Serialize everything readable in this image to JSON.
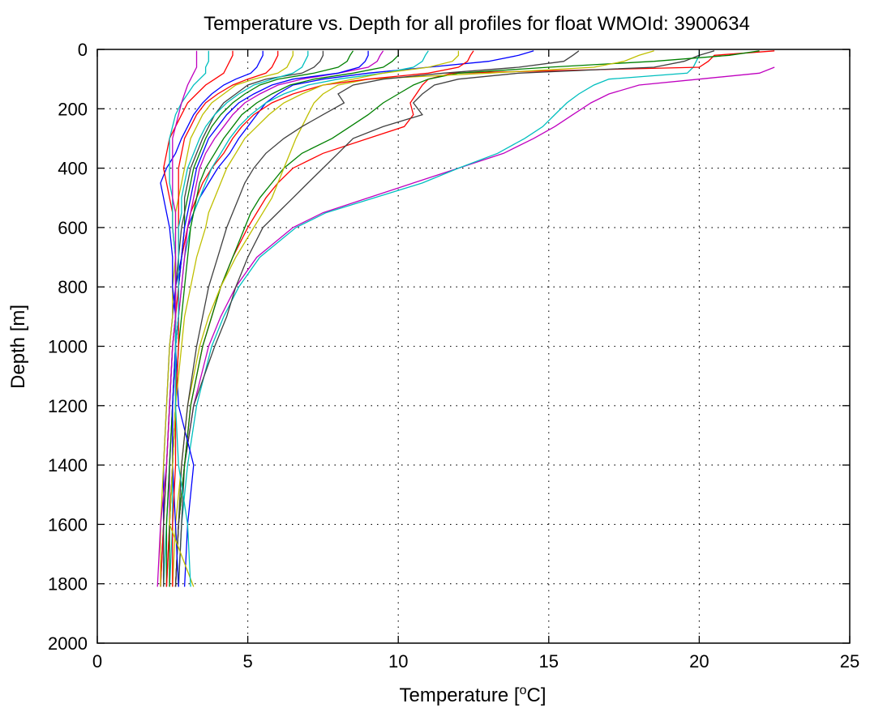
{
  "chart_data": {
    "type": "line",
    "title": "Temperature vs. Depth for all profiles for float WMOId: 3900634",
    "xlabel": "Temperature [",
    "xlabel_superscript": "o",
    "xlabel_unit": "C]",
    "ylabel": "Depth [m]",
    "xlim": [
      0,
      25
    ],
    "ylim": [
      0,
      2000
    ],
    "y_reversed": true,
    "grid": true,
    "legend": "none",
    "xticks": [
      0,
      5,
      10,
      15,
      20,
      25
    ],
    "yticks": [
      0,
      200,
      400,
      600,
      800,
      1000,
      1200,
      1400,
      1600,
      1800,
      2000
    ],
    "xtick_labels": [
      "0",
      "5",
      "10",
      "15",
      "20",
      "25"
    ],
    "ytick_labels": [
      "0",
      "200",
      "400",
      "600",
      "800",
      "1000",
      "1200",
      "1400",
      "1600",
      "1800",
      "2000"
    ],
    "colors": [
      "#0000ff",
      "#008000",
      "#ff0000",
      "#00bfbf",
      "#bf00bf",
      "#bfbf00",
      "#404040"
    ],
    "profile_depths": [
      5,
      20,
      40,
      60,
      80,
      100,
      120,
      150,
      180,
      220,
      260,
      300,
      350,
      400,
      450,
      500,
      550,
      600,
      700,
      800,
      900,
      1000,
      1200,
      1400,
      1600,
      1810
    ],
    "series": [
      {
        "color": "#bf00bf",
        "values": [
          null,
          null,
          null,
          22.5,
          22.0,
          20.0,
          18.0,
          17.0,
          16.4,
          15.8,
          15.2,
          14.5,
          13.5,
          12.0,
          10.5,
          9.0,
          7.5,
          6.5,
          5.3,
          4.6,
          4.1,
          3.7,
          3.2,
          2.9,
          2.7,
          2.6
        ]
      },
      {
        "color": "#00bfbf",
        "values": [
          20.0,
          20.0,
          19.9,
          19.8,
          19.6,
          17.0,
          16.5,
          16.0,
          15.6,
          15.2,
          14.8,
          14.2,
          13.3,
          12.0,
          10.8,
          9.2,
          7.6,
          6.6,
          5.4,
          4.7,
          4.2,
          3.8,
          3.3,
          3.0,
          2.8,
          2.7
        ]
      },
      {
        "color": "#ff0000",
        "values": [
          22.5,
          20.5,
          20.3,
          20.0,
          11.8,
          11.0,
          10.8,
          10.6,
          10.4,
          10.5,
          10.2,
          9.0,
          7.5,
          6.5,
          6.0,
          5.6,
          5.3,
          5.0,
          4.5,
          4.1,
          3.8,
          3.5,
          3.1,
          2.9,
          2.7,
          2.6
        ]
      },
      {
        "color": "#404040",
        "values": [
          20.5,
          20.0,
          19.5,
          18.5,
          14.0,
          12.0,
          11.2,
          10.8,
          10.5,
          10.8,
          9.5,
          8.5,
          8.0,
          7.5,
          7.0,
          6.5,
          6.0,
          5.5,
          5.0,
          4.6,
          4.3,
          3.9,
          3.2,
          2.9,
          2.8,
          2.7
        ]
      },
      {
        "color": "#008000",
        "values": [
          22.0,
          21.0,
          18.5,
          15.0,
          12.0,
          11.0,
          10.5,
          10.0,
          9.5,
          9.0,
          8.4,
          7.8,
          6.8,
          6.2,
          5.8,
          5.4,
          5.1,
          4.9,
          4.5,
          4.1,
          3.8,
          3.5,
          3.1,
          2.9,
          2.7,
          2.6
        ]
      },
      {
        "color": "#bfbf00",
        "values": [
          18.5,
          18.0,
          17.5,
          16.5,
          13.0,
          9.0,
          8.0,
          7.5,
          7.2,
          7.0,
          6.8,
          6.6,
          6.4,
          6.2,
          6.0,
          5.8,
          5.5,
          5.2,
          4.6,
          4.1,
          3.7,
          3.4,
          3.0,
          2.8,
          2.6,
          2.5
        ]
      },
      {
        "color": "#0000ff",
        "values": [
          14.5,
          14.0,
          13.0,
          11.0,
          9.0,
          7.5,
          6.5,
          6.0,
          5.6,
          5.3,
          5.0,
          4.7,
          4.4,
          4.0,
          3.7,
          3.4,
          3.2,
          3.0,
          2.8,
          2.6,
          2.5,
          2.4,
          2.3,
          2.2,
          2.2,
          2.1
        ]
      },
      {
        "color": "#ff0000",
        "values": [
          12.5,
          12.4,
          12.3,
          12.0,
          11.0,
          9.0,
          7.5,
          6.5,
          5.8,
          5.2,
          4.8,
          4.5,
          4.2,
          3.8,
          3.5,
          3.3,
          3.1,
          3.0,
          2.8,
          2.7,
          2.6,
          2.5,
          2.4,
          2.3,
          2.2,
          2.1
        ]
      },
      {
        "color": "#00bfbf",
        "values": [
          11.0,
          10.9,
          10.8,
          10.5,
          9.5,
          8.0,
          7.0,
          6.2,
          5.6,
          5.1,
          4.7,
          4.4,
          4.1,
          3.8,
          3.6,
          3.4,
          3.2,
          3.1,
          2.9,
          2.8,
          2.7,
          2.6,
          2.5,
          2.4,
          2.3,
          2.2
        ]
      },
      {
        "color": "#bf00bf",
        "values": [
          9.5,
          9.4,
          9.3,
          9.0,
          8.0,
          6.8,
          6.0,
          5.4,
          4.9,
          4.5,
          4.2,
          3.9,
          3.6,
          3.4,
          3.3,
          3.2,
          3.1,
          3.0,
          2.9,
          2.8,
          2.7,
          2.6,
          2.5,
          2.4,
          2.4,
          2.3
        ]
      },
      {
        "color": "#008000",
        "values": [
          8.5,
          8.4,
          8.3,
          8.0,
          7.2,
          6.0,
          5.4,
          4.9,
          4.5,
          4.1,
          3.8,
          3.6,
          3.4,
          3.2,
          3.1,
          3.0,
          2.9,
          2.9,
          2.8,
          2.7,
          2.7,
          2.6,
          2.5,
          2.4,
          2.3,
          2.3
        ]
      },
      {
        "color": "#404040",
        "values": [
          7.5,
          7.5,
          7.4,
          7.2,
          6.8,
          5.6,
          5.0,
          4.6,
          4.2,
          3.9,
          3.7,
          3.5,
          3.3,
          3.1,
          3.0,
          2.9,
          2.9,
          2.8,
          2.7,
          2.6,
          2.6,
          2.5,
          2.4,
          2.3,
          2.2,
          2.2
        ]
      },
      {
        "color": "#bfbf00",
        "values": [
          6.5,
          6.5,
          6.4,
          6.3,
          6.0,
          5.2,
          4.6,
          4.2,
          3.8,
          3.5,
          3.3,
          3.1,
          3.0,
          2.9,
          2.8,
          2.7,
          2.6,
          2.6,
          2.6,
          2.5,
          2.5,
          2.4,
          2.3,
          2.2,
          2.1,
          2.1
        ]
      },
      {
        "color": "#0000ff",
        "values": [
          5.5,
          5.5,
          5.4,
          5.3,
          5.1,
          4.6,
          4.2,
          3.8,
          3.5,
          3.2,
          3.0,
          2.8,
          2.6,
          2.3,
          2.1,
          2.2,
          2.3,
          2.4,
          2.5,
          2.5,
          2.6,
          2.6,
          2.7,
          3.2,
          3.0,
          2.9
        ]
      },
      {
        "color": "#ff0000",
        "values": [
          4.5,
          4.5,
          4.4,
          4.3,
          4.2,
          3.9,
          3.6,
          3.3,
          3.0,
          2.8,
          2.6,
          2.4,
          2.3,
          2.2,
          2.3,
          2.4,
          2.5,
          2.5,
          2.6,
          2.6,
          2.6,
          2.6,
          2.6,
          2.5,
          2.4,
          2.3
        ]
      },
      {
        "color": "#00bfbf",
        "values": [
          3.7,
          3.7,
          3.7,
          3.6,
          3.6,
          3.4,
          3.2,
          3.0,
          2.8,
          2.6,
          2.5,
          2.4,
          2.4,
          2.4,
          2.4,
          2.5,
          2.5,
          2.5,
          2.6,
          2.6,
          2.6,
          2.6,
          2.6,
          2.5,
          2.5,
          2.4
        ]
      },
      {
        "color": "#bf00bf",
        "values": [
          3.3,
          3.3,
          3.3,
          3.3,
          3.2,
          3.1,
          3.0,
          2.9,
          2.8,
          2.7,
          2.6,
          2.5,
          2.5,
          2.5,
          2.5,
          2.5,
          2.6,
          2.6,
          2.6,
          2.6,
          2.6,
          2.5,
          2.4,
          2.3,
          2.1,
          2.0
        ]
      },
      {
        "color": "#008000",
        "values": [
          10.0,
          10.0,
          9.8,
          9.5,
          8.5,
          7.2,
          6.4,
          5.8,
          5.3,
          4.8,
          4.5,
          4.2,
          3.9,
          3.6,
          3.4,
          3.3,
          3.2,
          3.1,
          3.0,
          2.9,
          2.8,
          2.7,
          2.6,
          2.5,
          2.4,
          2.4
        ]
      },
      {
        "color": "#404040",
        "values": [
          16.0,
          15.8,
          15.5,
          14.0,
          11.5,
          9.5,
          8.5,
          8.0,
          8.2,
          7.5,
          6.8,
          6.2,
          5.6,
          5.2,
          4.9,
          4.7,
          4.5,
          4.3,
          4.0,
          3.7,
          3.5,
          3.3,
          3.0,
          2.8,
          2.7,
          2.6
        ]
      },
      {
        "color": "#0000ff",
        "values": [
          9.0,
          9.0,
          8.9,
          8.7,
          8.0,
          6.5,
          5.8,
          5.2,
          4.7,
          4.3,
          4.0,
          3.7,
          3.5,
          3.3,
          3.2,
          3.1,
          3.0,
          2.9,
          2.8,
          2.7,
          2.7,
          2.6,
          2.5,
          2.5,
          2.6,
          2.7
        ]
      },
      {
        "color": "#ff0000",
        "values": [
          6.0,
          6.0,
          5.9,
          5.8,
          5.6,
          5.0,
          4.5,
          4.0,
          3.6,
          3.3,
          3.1,
          2.9,
          2.8,
          2.7,
          2.7,
          2.7,
          2.7,
          2.7,
          2.7,
          2.7,
          2.7,
          2.7,
          2.6,
          2.6,
          2.5,
          2.5
        ]
      },
      {
        "color": "#bfbf00",
        "values": [
          12.0,
          12.0,
          11.8,
          11.0,
          9.5,
          8.5,
          7.5,
          6.8,
          6.2,
          5.7,
          5.3,
          4.9,
          4.6,
          4.3,
          4.1,
          3.9,
          3.7,
          3.6,
          3.3,
          3.1,
          2.9,
          2.8,
          2.6,
          2.5,
          2.4,
          3.2
        ]
      },
      {
        "color": "#00bfbf",
        "values": [
          7.0,
          7.0,
          6.9,
          6.8,
          6.5,
          5.8,
          5.2,
          4.7,
          4.3,
          3.9,
          3.6,
          3.4,
          3.2,
          3.0,
          2.9,
          2.8,
          2.8,
          2.7,
          2.7,
          2.7,
          2.7,
          2.6,
          2.6,
          2.7,
          3.0,
          3.1
        ]
      }
    ]
  }
}
